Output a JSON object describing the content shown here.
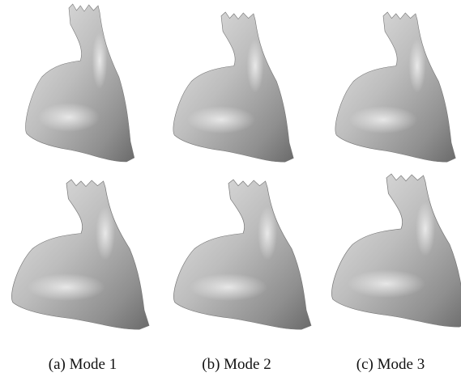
{
  "figure": {
    "captions": [
      "(a) Mode 1",
      "(b) Mode 2",
      "(c) Mode 3"
    ]
  }
}
